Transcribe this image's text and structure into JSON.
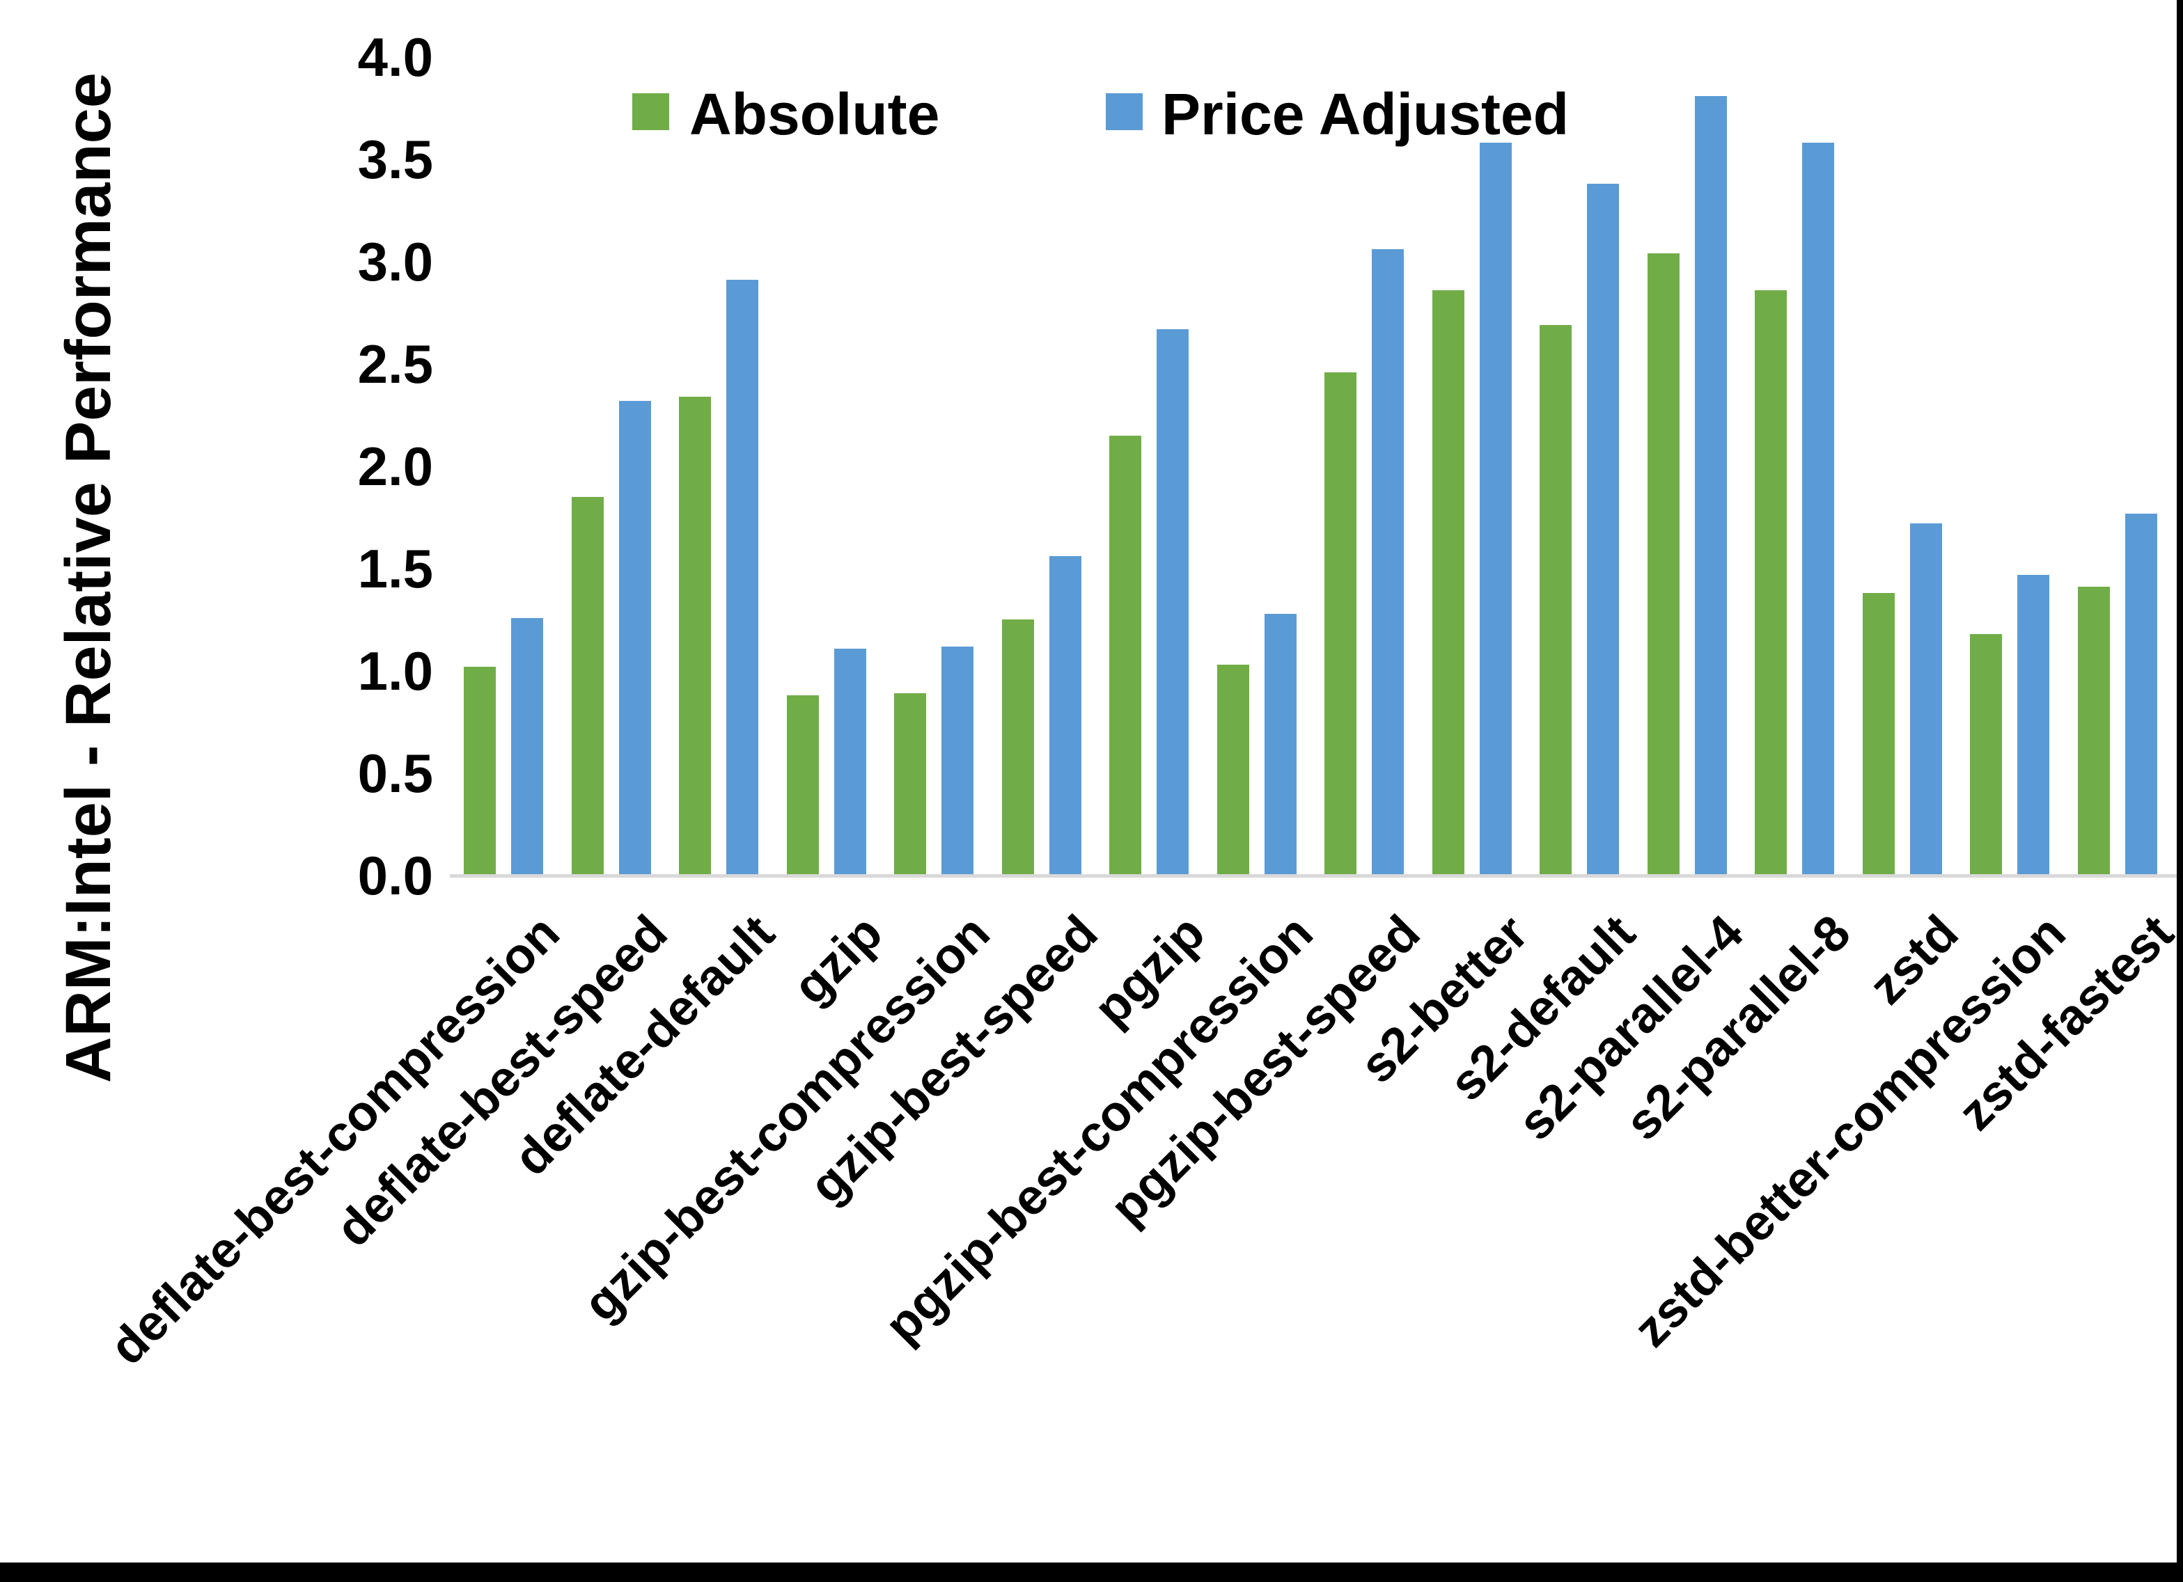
{
  "chart_data": {
    "type": "bar",
    "title": "",
    "ylabel": "ARM:Intel - Relative Performance",
    "xlabel": "",
    "ylim": [
      0.0,
      4.0
    ],
    "ytick_labels": [
      "0.0",
      "0.5",
      "1.0",
      "1.5",
      "2.0",
      "2.5",
      "3.0",
      "3.5",
      "4.0"
    ],
    "grid": false,
    "legend_position": "top",
    "categories": [
      "deflate-best-compression",
      "deflate-best-speed",
      "deflate-default",
      "gzip",
      "gzip-best-compression",
      "gzip-best-speed",
      "pgzip",
      "pgzip-best-compression",
      "pgzip-best-speed",
      "s2-better",
      "s2-default",
      "s2-parallel-4",
      "s2-parallel-8",
      "zstd",
      "zstd-better-compression",
      "zstd-fastest"
    ],
    "series": [
      {
        "name": "Absolute",
        "color": "#70AD47",
        "values": [
          1.02,
          1.85,
          2.34,
          0.88,
          0.89,
          1.25,
          2.15,
          1.03,
          2.46,
          2.86,
          2.69,
          3.04,
          2.86,
          1.38,
          1.18,
          1.41
        ]
      },
      {
        "name": "Price Adjusted",
        "color": "#5B9BD5",
        "values": [
          1.26,
          2.32,
          2.91,
          1.11,
          1.12,
          1.56,
          2.67,
          1.28,
          3.06,
          3.58,
          3.38,
          3.81,
          3.58,
          1.72,
          1.47,
          1.77
        ]
      }
    ],
    "axis_line_color": "#D9D9D9"
  }
}
